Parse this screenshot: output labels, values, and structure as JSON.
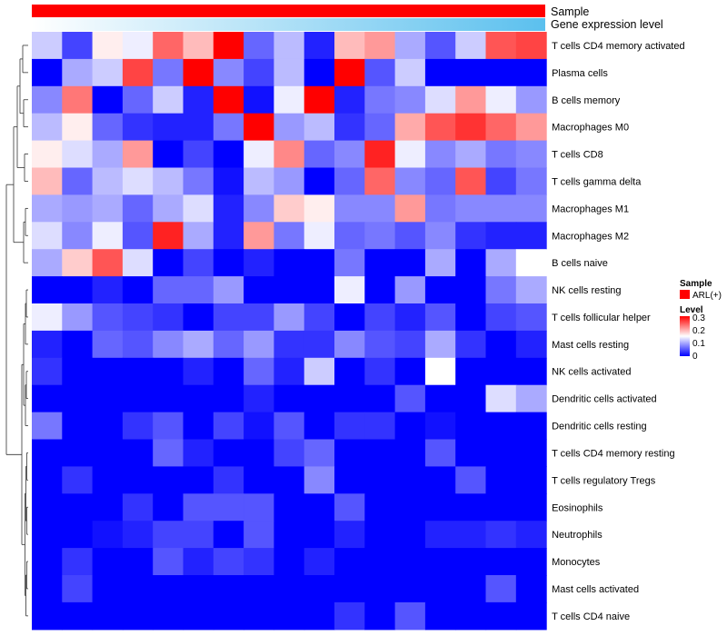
{
  "chart_data": {
    "type": "heatmap",
    "title": "",
    "annotation_tracks": [
      {
        "label": "Sample",
        "kind": "categorical",
        "color": "#ff0000"
      },
      {
        "label": "Gene expression level",
        "kind": "gradient",
        "from": "#ffffff",
        "to": "#5bc0ee"
      }
    ],
    "rows": [
      "T cells CD4 memory activated",
      "Plasma cells",
      "B cells memory",
      "Macrophages M0",
      "T cells CD8",
      "T cells gamma delta",
      "Macrophages M1",
      "Macrophages M2",
      "B cells naive",
      "NK cells resting",
      "T cells follicular helper",
      "Mast cells resting",
      "NK cells activated",
      "Dendritic cells activated",
      "Dendritic cells resting",
      "T cells CD4 memory resting",
      "T cells regulatory  Tregs",
      "Eosinophils",
      "Neutrophils",
      "Monocytes",
      "Mast cells activated",
      "T cells CD4 naive"
    ],
    "n_columns": 17,
    "values": [
      [
        0.12,
        0.04,
        0.16,
        0.14,
        0.24,
        0.19,
        0.3,
        0.06,
        0.11,
        0.02,
        0.19,
        0.21,
        0.1,
        0.05,
        0.12,
        0.25,
        0.26
      ],
      [
        0.0,
        0.1,
        0.12,
        0.26,
        0.07,
        0.3,
        0.08,
        0.04,
        0.11,
        0.0,
        0.3,
        0.05,
        0.12,
        0.0,
        0.0,
        0.0,
        0.0
      ],
      [
        0.08,
        0.23,
        0.0,
        0.06,
        0.12,
        0.02,
        0.3,
        0.01,
        0.14,
        0.3,
        0.02,
        0.07,
        0.08,
        0.13,
        0.21,
        0.14,
        0.09
      ],
      [
        0.11,
        0.16,
        0.06,
        0.03,
        0.02,
        0.02,
        0.07,
        0.3,
        0.09,
        0.11,
        0.03,
        0.06,
        0.2,
        0.25,
        0.27,
        0.24,
        0.21
      ],
      [
        0.16,
        0.13,
        0.1,
        0.21,
        0.0,
        0.04,
        0.0,
        0.14,
        0.22,
        0.06,
        0.08,
        0.28,
        0.14,
        0.08,
        0.1,
        0.07,
        0.08
      ],
      [
        0.19,
        0.06,
        0.11,
        0.13,
        0.11,
        0.07,
        0.01,
        0.11,
        0.09,
        0.0,
        0.06,
        0.24,
        0.08,
        0.06,
        0.25,
        0.04,
        0.07
      ],
      [
        0.1,
        0.09,
        0.1,
        0.06,
        0.1,
        0.13,
        0.02,
        0.08,
        0.18,
        0.16,
        0.08,
        0.08,
        0.21,
        0.07,
        0.08,
        0.08,
        0.08
      ],
      [
        0.13,
        0.08,
        0.14,
        0.05,
        0.28,
        0.1,
        0.02,
        0.21,
        0.07,
        0.14,
        0.06,
        0.07,
        0.05,
        0.08,
        0.03,
        0.02,
        0.02
      ],
      [
        0.1,
        0.18,
        0.25,
        0.13,
        0.0,
        0.04,
        0.0,
        0.02,
        0.0,
        0.0,
        0.07,
        0.0,
        0.0,
        0.1,
        0.0,
        0.1,
        0.15
      ],
      [
        0.0,
        0.0,
        0.02,
        0.0,
        0.06,
        0.06,
        0.09,
        0.0,
        0.0,
        0.0,
        0.14,
        0.0,
        0.09,
        0.0,
        0.0,
        0.07,
        0.1
      ],
      [
        0.14,
        0.09,
        0.05,
        0.04,
        0.03,
        0.0,
        0.04,
        0.04,
        0.09,
        0.04,
        0.0,
        0.04,
        0.02,
        0.05,
        0.0,
        0.04,
        0.05
      ],
      [
        0.02,
        0.0,
        0.06,
        0.05,
        0.08,
        0.1,
        0.06,
        0.09,
        0.03,
        0.03,
        0.08,
        0.05,
        0.04,
        0.1,
        0.03,
        0.0,
        0.02
      ],
      [
        0.03,
        0.0,
        0.0,
        0.0,
        0.0,
        0.02,
        0.0,
        0.06,
        0.02,
        0.12,
        0.0,
        0.03,
        0.0,
        0.15,
        0.0,
        0.0,
        0.0
      ],
      [
        0.0,
        0.0,
        0.0,
        0.0,
        0.0,
        0.0,
        0.0,
        0.02,
        0.0,
        0.0,
        0.0,
        0.0,
        0.05,
        0.0,
        0.0,
        0.13,
        0.1
      ],
      [
        0.07,
        0.0,
        0.0,
        0.03,
        0.05,
        0.0,
        0.04,
        0.01,
        0.05,
        0.0,
        0.03,
        0.03,
        0.0,
        0.01,
        0.0,
        0.0,
        0.0
      ],
      [
        0.0,
        0.0,
        0.0,
        0.0,
        0.06,
        0.02,
        0.0,
        0.0,
        0.04,
        0.06,
        0.0,
        0.0,
        0.0,
        0.05,
        0.0,
        0.0,
        0.0
      ],
      [
        0.0,
        0.03,
        0.0,
        0.0,
        0.0,
        0.0,
        0.03,
        0.0,
        0.0,
        0.08,
        0.0,
        0.0,
        0.0,
        0.0,
        0.05,
        0.0,
        0.0
      ],
      [
        0.0,
        0.0,
        0.0,
        0.03,
        0.0,
        0.05,
        0.05,
        0.05,
        0.0,
        0.0,
        0.05,
        0.0,
        0.0,
        0.0,
        0.0,
        0.0,
        0.0
      ],
      [
        0.0,
        0.0,
        0.01,
        0.02,
        0.04,
        0.04,
        0.0,
        0.05,
        0.0,
        0.0,
        0.02,
        0.0,
        0.0,
        0.02,
        0.02,
        0.03,
        0.02
      ],
      [
        0.0,
        0.03,
        0.0,
        0.0,
        0.05,
        0.02,
        0.04,
        0.03,
        0.0,
        0.02,
        0.0,
        0.0,
        0.0,
        0.0,
        0.0,
        0.0,
        0.0
      ],
      [
        0.0,
        0.04,
        0.0,
        0.0,
        0.0,
        0.0,
        0.0,
        0.0,
        0.0,
        0.0,
        0.0,
        0.0,
        0.0,
        0.0,
        0.0,
        0.05,
        0.0
      ],
      [
        0.0,
        0.0,
        0.0,
        0.0,
        0.0,
        0.0,
        0.0,
        0.0,
        0.0,
        0.0,
        0.03,
        0.0,
        0.05,
        0.0,
        0.0,
        0.0,
        0.0
      ]
    ],
    "dendrogram_order": "rows clustered (hierarchical)",
    "legend": {
      "sample_title": "Sample",
      "sample_entries": [
        {
          "label": "ARL(+)",
          "color": "#ff0000"
        }
      ],
      "level_title": "Level",
      "level_ticks": [
        "0.3",
        "0.2",
        "0.1",
        "0"
      ],
      "level_range": [
        0,
        0.3
      ],
      "colors": {
        "low": "#0000ff",
        "mid": "#ffffff",
        "high": "#ff0000"
      }
    }
  }
}
